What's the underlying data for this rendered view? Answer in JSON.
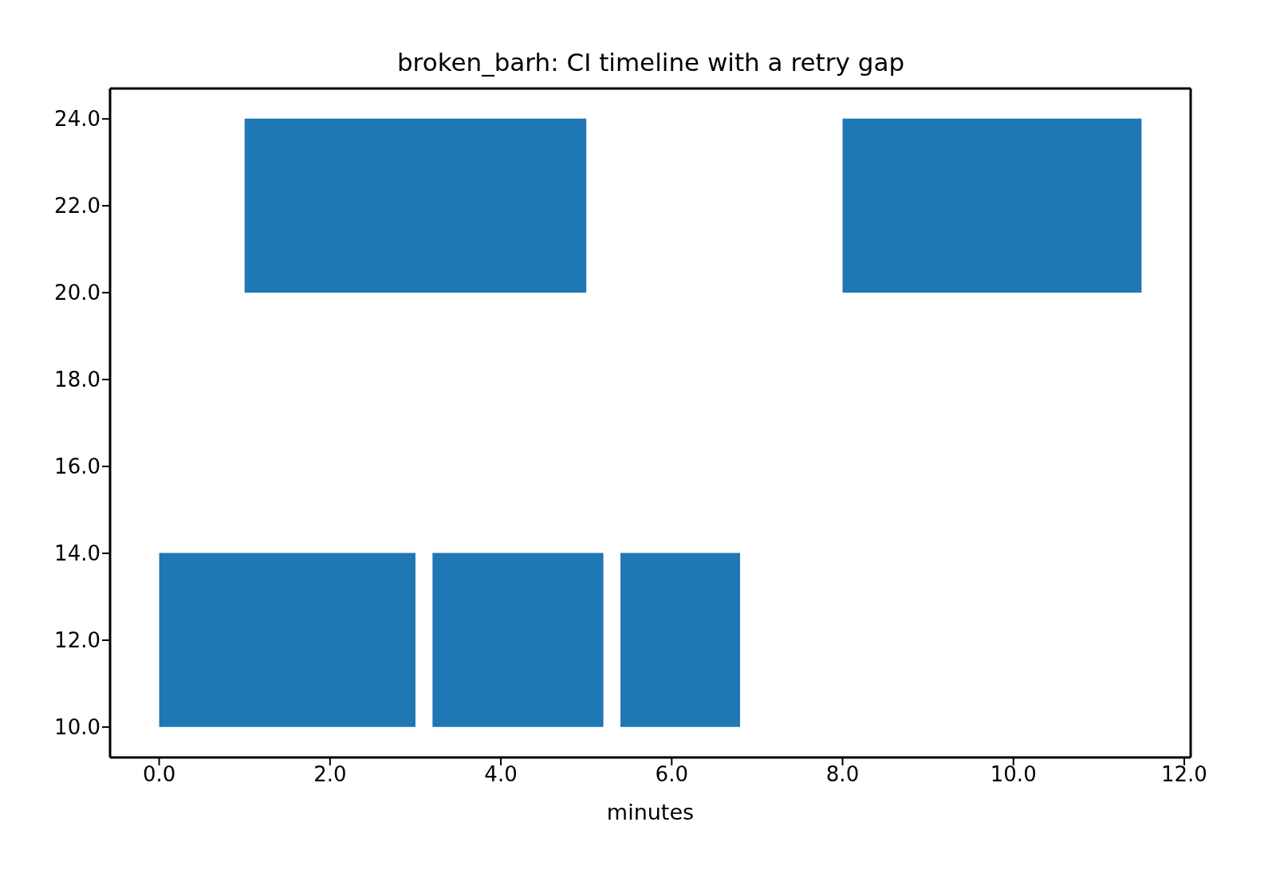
{
  "chart_data": {
    "type": "bar",
    "orientation": "horizontal",
    "title": "broken_barh: CI timeline with a retry gap",
    "xlabel": "minutes",
    "x": [
      12,
      22
    ],
    "xlim": [
      -0.575,
      12.075
    ],
    "xticks": [
      {
        "value": 0,
        "label": "0.0"
      },
      {
        "value": 2,
        "label": "2.0"
      },
      {
        "value": 4,
        "label": "4.0"
      },
      {
        "value": 6,
        "label": "6.0"
      },
      {
        "value": 8,
        "label": "8.0"
      },
      {
        "value": 10,
        "label": "10.0"
      },
      {
        "value": 12,
        "label": "12.0"
      }
    ],
    "ylim": [
      9.3,
      24.7
    ],
    "yticks": [
      {
        "value": 10,
        "label": "10.0"
      },
      {
        "value": 12,
        "label": "12.0"
      },
      {
        "value": 14,
        "label": "14.0"
      },
      {
        "value": 16,
        "label": "16.0"
      },
      {
        "value": 18,
        "label": "18.0"
      },
      {
        "value": 20,
        "label": "20.0"
      },
      {
        "value": 22,
        "label": "22.0"
      },
      {
        "value": 24,
        "label": "24.0"
      }
    ],
    "series": [
      {
        "color": "#1f77b4",
        "base": [
          0,
          1
        ],
        "values": [
          3,
          4
        ]
      },
      {
        "color": "#1f77b4",
        "base": [
          3.2,
          8
        ],
        "values": [
          2,
          3.5
        ]
      },
      {
        "color": "#1f77b4",
        "base": [
          5.4,
          null
        ],
        "values": [
          1.4,
          null
        ]
      }
    ]
  }
}
